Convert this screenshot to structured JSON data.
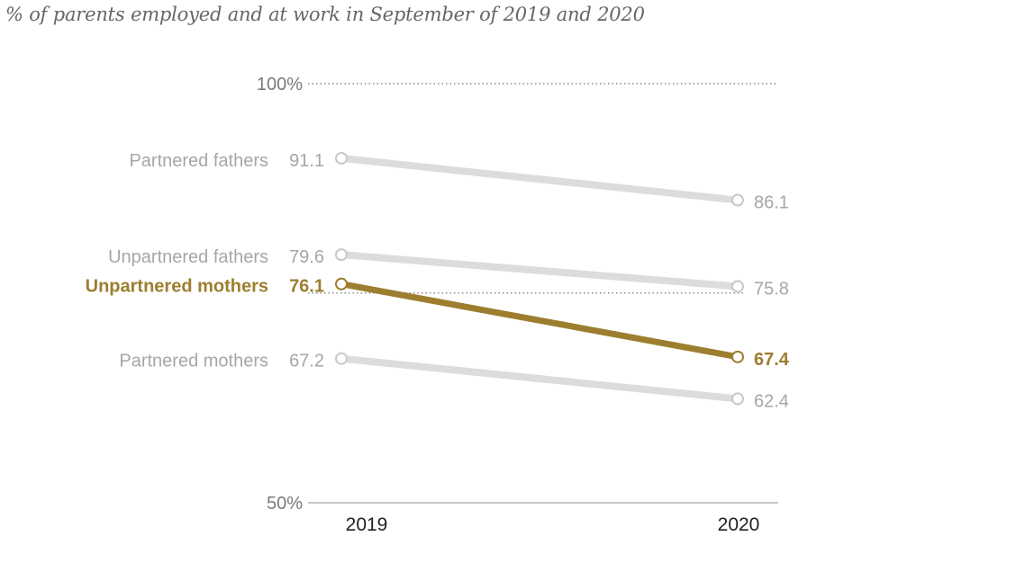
{
  "subtitle": "% of parents employed and at work in September of 2019 and 2020",
  "colors": {
    "muted_line": "#dcdcdc",
    "muted_text": "#a6a6a6",
    "highlight": "#9c7e2e",
    "axis": "#8c8c8c",
    "ref_line": "#8c8c8c"
  },
  "chart_data": {
    "type": "line",
    "x": [
      "2019",
      "2020"
    ],
    "ylim": [
      50,
      100
    ],
    "y_ticks": [
      {
        "value": 100,
        "label": "100%"
      },
      {
        "value": 50,
        "label": "50%"
      }
    ],
    "series": [
      {
        "name": "Partnered fathers",
        "values": [
          91.1,
          86.1
        ],
        "labels": [
          "91.1",
          "86.1"
        ],
        "highlight": false
      },
      {
        "name": "Unpartnered fathers",
        "values": [
          79.6,
          75.8
        ],
        "labels": [
          "79.6",
          "75.8"
        ],
        "highlight": false
      },
      {
        "name": "Partnered mothers",
        "values": [
          67.2,
          62.4
        ],
        "labels": [
          "67.2",
          "62.4"
        ],
        "highlight": false
      },
      {
        "name": "Unpartnered mothers",
        "values": [
          76.1,
          67.4
        ],
        "labels": [
          "76.1",
          "67.4"
        ],
        "highlight": true
      }
    ],
    "reference_line_series": "Unpartnered mothers",
    "grid": false,
    "legend": "none"
  }
}
